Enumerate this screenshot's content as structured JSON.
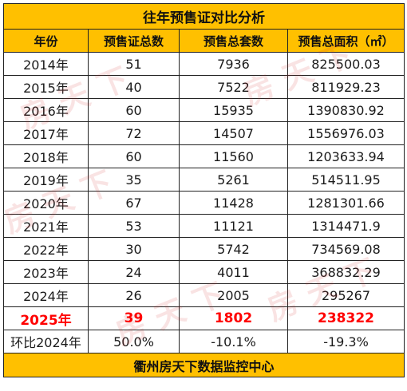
{
  "table": {
    "title": "往年预售证对比分析",
    "headers": [
      "年份",
      "预售证总数",
      "预售总套数",
      "预售总面积（㎡）"
    ],
    "rows": [
      [
        "2014年",
        "51",
        "7936",
        "825500.03"
      ],
      [
        "2015年",
        "40",
        "7522",
        "811929.23"
      ],
      [
        "2016年",
        "60",
        "15935",
        "1390830.92"
      ],
      [
        "2017年",
        "72",
        "14507",
        "1556976.03"
      ],
      [
        "2018年",
        "60",
        "11560",
        "1203633.94"
      ],
      [
        "2019年",
        "35",
        "5261",
        "514511.95"
      ],
      [
        "2020年",
        "67",
        "11428",
        "1281301.66"
      ],
      [
        "2021年",
        "53",
        "11121",
        "1314471.9"
      ],
      [
        "2022年",
        "30",
        "5742",
        "734569.08"
      ],
      [
        "2023年",
        "24",
        "4011",
        "368832.29"
      ],
      [
        "2024年",
        "26",
        "2005",
        "295267"
      ]
    ],
    "highlight_row": [
      "2025年",
      "39",
      "1802",
      "238322"
    ],
    "compare_row": [
      "环比2024年",
      "50.0%",
      "-10.1%",
      "-19.3%"
    ],
    "footer": "衢州房天下数据监控中心"
  },
  "watermark": {
    "text": "房天下",
    "color": "#d22828"
  },
  "colors": {
    "header_bg": "#ffc000",
    "highlight_text": "#ff0000",
    "border": "#222222"
  }
}
